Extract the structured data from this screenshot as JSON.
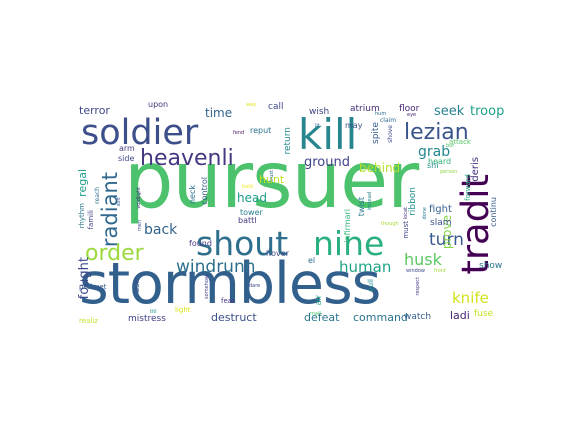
{
  "words": [
    {
      "text": "pursuer",
      "color": "#4cc26c"
    },
    {
      "text": "stormbless",
      "color": "#32608d"
    },
    {
      "text": "kill",
      "color": "#27858e"
    },
    {
      "text": "soldier",
      "color": "#3c4f8a"
    },
    {
      "text": "shout",
      "color": "#2e6f8e"
    },
    {
      "text": "nine",
      "color": "#2ab07f"
    },
    {
      "text": "tradit",
      "color": "#440154"
    },
    {
      "text": "heavenli",
      "color": "#453781"
    },
    {
      "text": "lezian",
      "color": "#3a548c"
    },
    {
      "text": "order",
      "color": "#9bd93c"
    },
    {
      "text": "radiant",
      "color": "#31688e"
    },
    {
      "text": "windrunn",
      "color": "#2d708e"
    },
    {
      "text": "turn",
      "color": "#38598c"
    },
    {
      "text": "husk",
      "color": "#5cc863"
    },
    {
      "text": "human",
      "color": "#20a386"
    },
    {
      "text": "knife",
      "color": "#d2e21b"
    },
    {
      "text": "fought",
      "color": "#3e4a89"
    },
    {
      "text": "back",
      "color": "#33638d"
    },
    {
      "text": "grab",
      "color": "#24878e"
    },
    {
      "text": "ground",
      "color": "#404387"
    },
    {
      "text": "behind",
      "color": "#b5de2b"
    },
    {
      "text": "prove",
      "color": "#86d549"
    },
    {
      "text": "seek",
      "color": "#26828e"
    },
    {
      "text": "troop",
      "color": "#1fa088"
    },
    {
      "text": "terror",
      "color": "#3f4788"
    },
    {
      "text": "time",
      "color": "#33638d"
    },
    {
      "text": "regal",
      "color": "#1f9e89"
    },
    {
      "text": "hunt",
      "color": "#c2df23"
    },
    {
      "text": "head",
      "color": "#1e9c89"
    },
    {
      "text": "destruct",
      "color": "#3c4f8a"
    },
    {
      "text": "defeat",
      "color": "#2a788e"
    },
    {
      "text": "command",
      "color": "#2c728e"
    },
    {
      "text": "ladi",
      "color": "#482475"
    },
    {
      "text": "mistress",
      "color": "#424186"
    },
    {
      "text": "fight",
      "color": "#34618d"
    },
    {
      "text": "deris",
      "color": "#46307e"
    },
    {
      "text": "continu",
      "color": "#375b8d"
    },
    {
      "text": "ribbon",
      "color": "#21908d"
    },
    {
      "text": "watch",
      "color": "#355f8d"
    },
    {
      "text": "show",
      "color": "#2b758e"
    },
    {
      "text": "fuse",
      "color": "#c8e020"
    },
    {
      "text": "forward",
      "color": "#25ac82"
    },
    {
      "text": "slam",
      "color": "#3b528b"
    },
    {
      "text": "heard",
      "color": "#31b57b"
    },
    {
      "text": "shi",
      "color": "#21918c"
    },
    {
      "text": "attack",
      "color": "#56c667"
    },
    {
      "text": "spite",
      "color": "#365c8d"
    },
    {
      "text": "return",
      "color": "#23888e"
    },
    {
      "text": "wish",
      "color": "#414487"
    },
    {
      "text": "atrium",
      "color": "#472c7a"
    },
    {
      "text": "floor",
      "color": "#482878"
    },
    {
      "text": "may",
      "color": "#3b528b"
    },
    {
      "text": "upon",
      "color": "#46337f"
    },
    {
      "text": "call",
      "color": "#3e4989"
    },
    {
      "text": "reput",
      "color": "#2c718e"
    },
    {
      "text": "arm",
      "color": "#433e85"
    },
    {
      "text": "side",
      "color": "#3f4889"
    },
    {
      "text": "neck",
      "color": "#2d718e"
    },
    {
      "text": "control",
      "color": "#375a8c"
    },
    {
      "text": "tower",
      "color": "#277f8e"
    },
    {
      "text": "battl",
      "color": "#443a83"
    },
    {
      "text": "found",
      "color": "#443983"
    },
    {
      "text": "hover",
      "color": "#3d4e8a"
    },
    {
      "text": "el",
      "color": "#2e6e8e"
    },
    {
      "text": "infirmari",
      "color": "#35b779"
    },
    {
      "text": "twist",
      "color": "#29798e"
    },
    {
      "text": "air",
      "color": "#22a884"
    },
    {
      "text": "ask",
      "color": "#3b528b"
    },
    {
      "text": "fear",
      "color": "#453882"
    },
    {
      "text": "rhythm",
      "color": "#2a778e"
    },
    {
      "text": "famili",
      "color": "#404588"
    },
    {
      "text": "perimet",
      "color": "#38588c"
    },
    {
      "text": "realiz",
      "color": "#c0df25"
    },
    {
      "text": "light",
      "color": "#dae319"
    },
    {
      "text": "reach",
      "color": "#2e6d8e"
    },
    {
      "text": "must",
      "color": "#3e4a89"
    },
    {
      "text": "pull",
      "color": "#228c8d"
    },
    {
      "text": "claim",
      "color": "#31678e"
    },
    {
      "text": "shove",
      "color": "#3f4889"
    },
    {
      "text": "window",
      "color": "#3f4788"
    },
    {
      "text": "front",
      "color": "#9fda3a"
    },
    {
      "text": "locat",
      "color": "#46327e"
    },
    {
      "text": "person",
      "color": "#90d743"
    },
    {
      "text": "eye",
      "color": "#481f70"
    },
    {
      "text": "though",
      "color": "#a8db34"
    },
    {
      "text": "instead",
      "color": "#25848e"
    },
    {
      "text": "trust",
      "color": "#2f6c8e"
    },
    {
      "text": "hold",
      "color": "#f1e51d"
    },
    {
      "text": "voidlight",
      "color": "#472d7b"
    },
    {
      "text": "men",
      "color": "#3c508b"
    },
    {
      "text": "somehow",
      "color": "#424086"
    },
    {
      "text": "dare",
      "color": "#3d4d8a"
    },
    {
      "text": "mail",
      "color": "#50c46a"
    },
    {
      "text": "way",
      "color": "#e2e418"
    },
    {
      "text": "respect",
      "color": "#443b84"
    },
    {
      "text": "done",
      "color": "#287c8e"
    },
    {
      "text": "titl",
      "color": "#228d8d"
    },
    {
      "text": "soft",
      "color": "#355e8d"
    },
    {
      "text": "bor",
      "color": "#4ac16d"
    },
    {
      "text": "hum",
      "color": "#2e6e8e"
    },
    {
      "text": "fend",
      "color": "#481769"
    },
    {
      "text": "lit",
      "color": "#2f6b8e"
    }
  ]
}
